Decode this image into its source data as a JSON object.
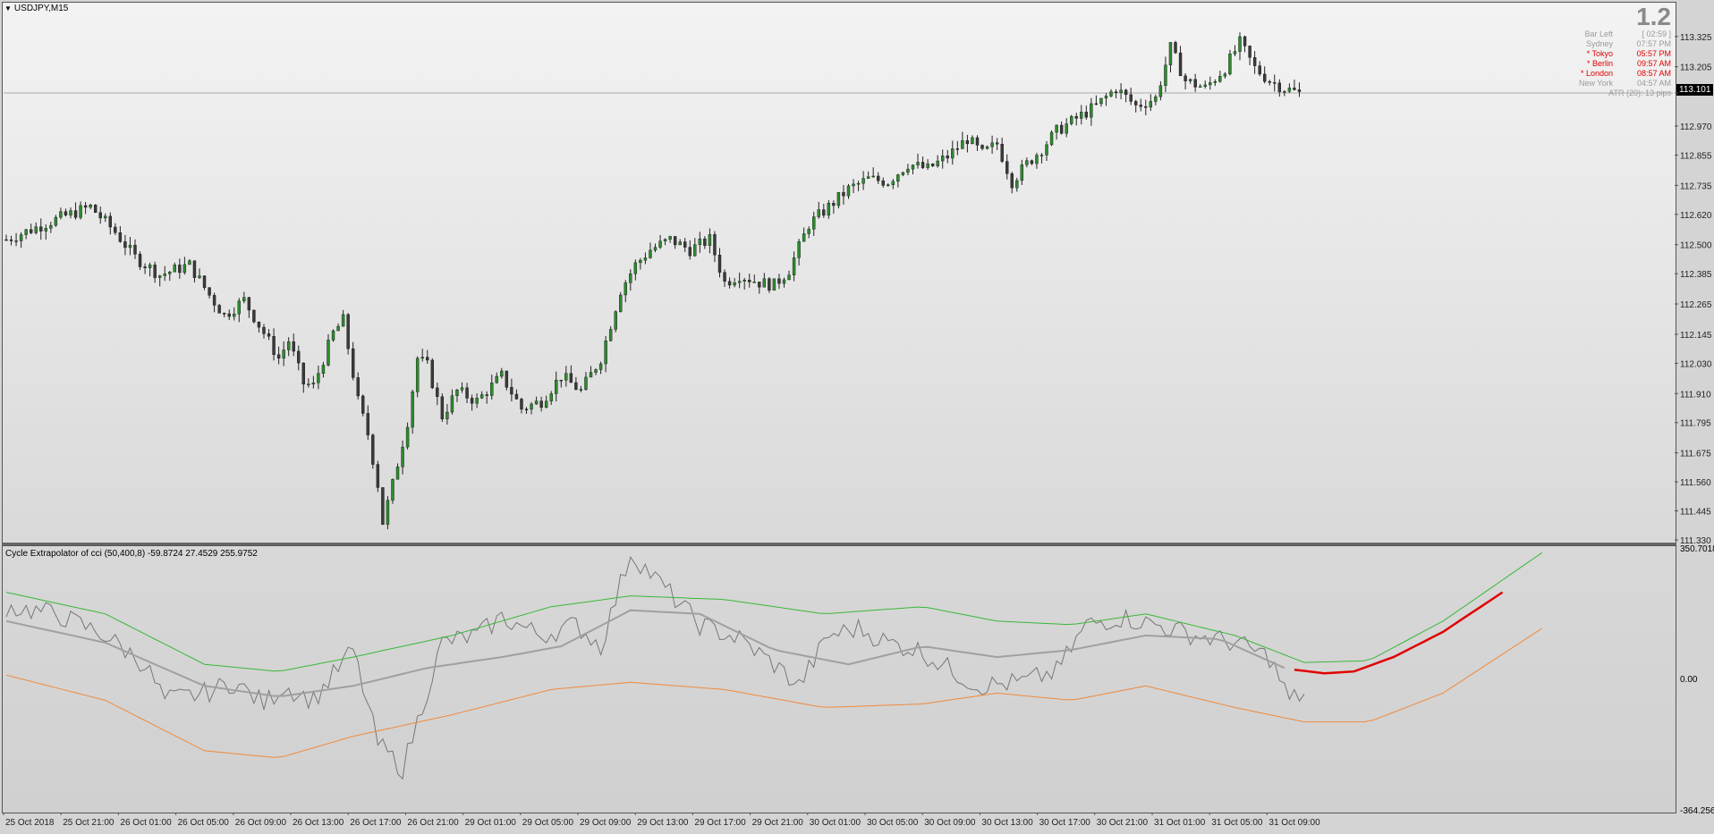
{
  "window": {
    "symbol": "USDJPY,M15"
  },
  "overlay": {
    "big_value": "1.2",
    "rows": [
      {
        "key": "Bar Left",
        "val": "[ 02:59 ]",
        "hot": false
      },
      {
        "key": "Sydney",
        "val": "07:57 PM",
        "hot": false
      },
      {
        "key": "* Tokyo",
        "val": "05:57 PM",
        "hot": true
      },
      {
        "key": "* Berlin",
        "val": "09:57 AM",
        "hot": true
      },
      {
        "key": "* London",
        "val": "08:57 AM",
        "hot": true
      },
      {
        "key": "New York",
        "val": "04:57 AM",
        "hot": false
      }
    ],
    "atr": "ATR (20): 13 pips",
    "current_price": "113.101"
  },
  "indicator": {
    "title": "Cycle Extrapolator of cci (50,400,8) -59.8724 27.4529 255.9752",
    "scale_top": "350.7018",
    "scale_zero": "0.00",
    "scale_bottom": "-364.2568"
  },
  "chart_data": [
    {
      "type": "candlestick",
      "title": "USDJPY,M15",
      "x_tick_labels": [
        "25 Oct 2018",
        "25 Oct 21:00",
        "26 Oct 01:00",
        "26 Oct 05:00",
        "26 Oct 09:00",
        "26 Oct 13:00",
        "26 Oct 17:00",
        "26 Oct 21:00",
        "29 Oct 01:00",
        "29 Oct 05:00",
        "29 Oct 09:00",
        "29 Oct 13:00",
        "29 Oct 17:00",
        "29 Oct 21:00",
        "30 Oct 01:00",
        "30 Oct 05:00",
        "30 Oct 09:00",
        "30 Oct 13:00",
        "30 Oct 17:00",
        "30 Oct 21:00",
        "31 Oct 01:00",
        "31 Oct 05:00",
        "31 Oct 09:00"
      ],
      "y_tick_labels": [
        "113.325",
        "113.205",
        "113.101",
        "112.970",
        "112.855",
        "112.735",
        "112.620",
        "112.500",
        "112.385",
        "112.265",
        "112.145",
        "112.030",
        "111.910",
        "111.795",
        "111.675",
        "111.560",
        "111.445",
        "111.330"
      ],
      "ylim": [
        111.33,
        113.42
      ],
      "current_price": 113.101,
      "colors": {
        "bull": "#2e8b2e",
        "bear": "#3a3a3a",
        "wick": "#222222"
      },
      "close_path": [
        [
          0,
          112.52
        ],
        [
          10,
          112.6
        ],
        [
          17,
          112.65
        ],
        [
          22,
          112.55
        ],
        [
          26,
          112.45
        ],
        [
          31,
          112.38
        ],
        [
          37,
          112.42
        ],
        [
          41,
          112.3
        ],
        [
          44,
          112.22
        ],
        [
          48,
          112.28
        ],
        [
          52,
          112.15
        ],
        [
          55,
          112.05
        ],
        [
          57,
          112.12
        ],
        [
          60,
          111.95
        ],
        [
          62,
          111.94
        ],
        [
          66,
          112.15
        ],
        [
          68,
          112.2
        ],
        [
          71,
          111.88
        ],
        [
          73,
          111.75
        ],
        [
          75,
          111.55
        ],
        [
          76,
          111.4
        ],
        [
          78,
          111.55
        ],
        [
          81,
          111.8
        ],
        [
          83,
          112.05
        ],
        [
          85,
          112.02
        ],
        [
          88,
          111.82
        ],
        [
          91,
          111.92
        ],
        [
          95,
          111.88
        ],
        [
          100,
          111.98
        ],
        [
          104,
          111.85
        ],
        [
          108,
          111.88
        ],
        [
          112,
          111.98
        ],
        [
          116,
          111.92
        ],
        [
          120,
          112.05
        ],
        [
          124,
          112.32
        ],
        [
          127,
          112.42
        ],
        [
          130,
          112.48
        ],
        [
          134,
          112.52
        ],
        [
          138,
          112.48
        ],
        [
          142,
          112.52
        ],
        [
          145,
          112.35
        ],
        [
          148,
          112.38
        ],
        [
          152,
          112.35
        ],
        [
          155,
          112.34
        ],
        [
          158,
          112.4
        ],
        [
          162,
          112.58
        ],
        [
          166,
          112.65
        ],
        [
          170,
          112.72
        ],
        [
          174,
          112.76
        ],
        [
          178,
          112.75
        ],
        [
          182,
          112.82
        ],
        [
          186,
          112.8
        ],
        [
          190,
          112.85
        ],
        [
          194,
          112.92
        ],
        [
          197,
          112.86
        ],
        [
          200,
          112.9
        ],
        [
          203,
          112.75
        ],
        [
          206,
          112.82
        ],
        [
          209,
          112.88
        ],
        [
          212,
          112.95
        ],
        [
          216,
          113.0
        ],
        [
          220,
          113.05
        ],
        [
          224,
          113.12
        ],
        [
          228,
          113.05
        ],
        [
          232,
          113.08
        ],
        [
          235,
          113.28
        ],
        [
          238,
          113.15
        ],
        [
          242,
          113.12
        ],
        [
          246,
          113.2
        ],
        [
          249,
          113.3
        ],
        [
          252,
          113.2
        ],
        [
          255,
          113.15
        ],
        [
          258,
          113.12
        ],
        [
          261,
          113.1
        ]
      ],
      "bars": 262
    },
    {
      "type": "line",
      "title": "Cycle Extrapolator of cci (50,400,8) -59.8724 27.4529 255.9752",
      "ylim": [
        -364.2568,
        350.7018
      ],
      "series": [
        {
          "color": "#777777",
          "values_path": [
            [
              0,
              200
            ],
            [
              10,
              180
            ],
            [
              20,
              120
            ],
            [
              28,
              40
            ],
            [
              32,
              -60
            ],
            [
              40,
              -40
            ],
            [
              46,
              -10
            ],
            [
              52,
              -70
            ],
            [
              56,
              -20
            ],
            [
              62,
              -60
            ],
            [
              70,
              80
            ],
            [
              75,
              -180
            ],
            [
              80,
              -250
            ],
            [
              88,
              100
            ],
            [
              95,
              120
            ],
            [
              100,
              170
            ],
            [
              108,
              120
            ],
            [
              115,
              150
            ],
            [
              120,
              90
            ],
            [
              126,
              350
            ],
            [
              133,
              250
            ],
            [
              140,
              150
            ],
            [
              148,
              110
            ],
            [
              155,
              40
            ],
            [
              160,
              -20
            ],
            [
              166,
              120
            ],
            [
              172,
              140
            ],
            [
              178,
              100
            ],
            [
              184,
              80
            ],
            [
              190,
              30
            ],
            [
              196,
              -20
            ],
            [
              205,
              -10
            ],
            [
              212,
              20
            ],
            [
              218,
              150
            ],
            [
              225,
              170
            ],
            [
              232,
              150
            ],
            [
              240,
              120
            ],
            [
              248,
              100
            ],
            [
              255,
              60
            ],
            [
              259,
              -60
            ],
            [
              262,
              -40
            ]
          ]
        },
        {
          "color": "#a0a0a0",
          "values_path": [
            [
              0,
              160
            ],
            [
              20,
              100
            ],
            [
              40,
              -20
            ],
            [
              55,
              -50
            ],
            [
              70,
              -20
            ],
            [
              85,
              30
            ],
            [
              100,
              60
            ],
            [
              112,
              90
            ],
            [
              126,
              190
            ],
            [
              140,
              180
            ],
            [
              155,
              80
            ],
            [
              170,
              40
            ],
            [
              185,
              90
            ],
            [
              200,
              60
            ],
            [
              215,
              80
            ],
            [
              230,
              120
            ],
            [
              245,
              110
            ],
            [
              258,
              30
            ]
          ]
        },
        {
          "color": "#38b838",
          "values_path": [
            [
              0,
              240
            ],
            [
              20,
              180
            ],
            [
              40,
              40
            ],
            [
              55,
              20
            ],
            [
              70,
              60
            ],
            [
              90,
              120
            ],
            [
              110,
              200
            ],
            [
              126,
              230
            ],
            [
              145,
              220
            ],
            [
              165,
              180
            ],
            [
              185,
              200
            ],
            [
              200,
              160
            ],
            [
              215,
              150
            ],
            [
              230,
              180
            ],
            [
              248,
              120
            ],
            [
              262,
              45
            ],
            [
              275,
              50
            ],
            [
              290,
              160
            ],
            [
              310,
              350
            ]
          ]
        },
        {
          "color": "#f08a3c",
          "values_path": [
            [
              0,
              10
            ],
            [
              20,
              -60
            ],
            [
              40,
              -200
            ],
            [
              55,
              -220
            ],
            [
              70,
              -160
            ],
            [
              90,
              -100
            ],
            [
              110,
              -30
            ],
            [
              126,
              -10
            ],
            [
              145,
              -30
            ],
            [
              165,
              -80
            ],
            [
              185,
              -70
            ],
            [
              200,
              -40
            ],
            [
              215,
              -60
            ],
            [
              230,
              -20
            ],
            [
              248,
              -80
            ],
            [
              262,
              -120
            ],
            [
              275,
              -120
            ],
            [
              290,
              -40
            ],
            [
              310,
              140
            ]
          ]
        },
        {
          "color": "#e00000",
          "values_path": [
            [
              260,
              25
            ],
            [
              266,
              15
            ],
            [
              272,
              20
            ],
            [
              280,
              60
            ],
            [
              290,
              130
            ],
            [
              302,
              240
            ]
          ]
        }
      ]
    }
  ]
}
